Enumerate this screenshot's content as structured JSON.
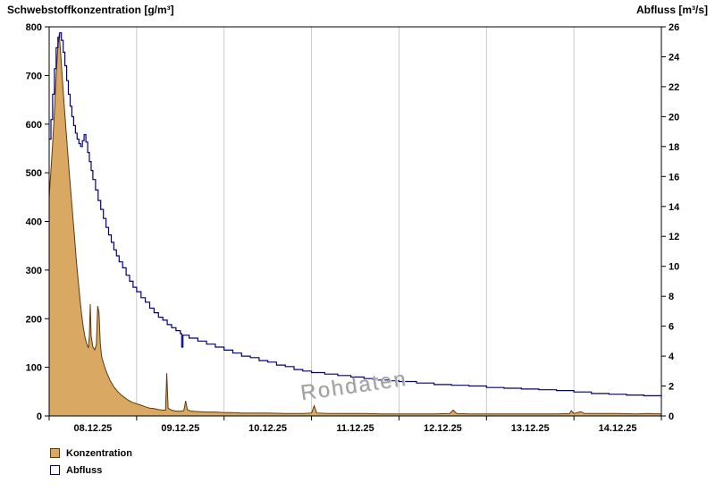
{
  "watermark": {
    "text": "Rohdaten"
  },
  "legend": {
    "items": [
      {
        "label": "Konzentration"
      },
      {
        "label": "Abfluss"
      }
    ]
  },
  "colors": {
    "background": "#ffffff",
    "grid": "#c9c9c9",
    "axis": "#000000",
    "concentration_fill": "#d9a963",
    "concentration_stroke": "#5f3a10",
    "discharge_line": "#000080",
    "watermark": "#a0a0a0"
  },
  "chart_data": {
    "type": "line",
    "title": "",
    "left_axis": {
      "title": "Schwebstoffkonzentration [g/m³]",
      "min": 0,
      "max": 800,
      "tick_step": 100,
      "ticks": [
        0,
        100,
        200,
        300,
        400,
        500,
        600,
        700,
        800
      ]
    },
    "right_axis": {
      "title": "Abfluss [m³/s]",
      "min": 0,
      "max": 26,
      "tick_step": 2,
      "ticks": [
        0,
        2,
        4,
        6,
        8,
        10,
        12,
        14,
        16,
        18,
        20,
        22,
        24,
        26
      ]
    },
    "x_axis": {
      "domain": [
        0,
        7
      ],
      "unit": "days",
      "labels": [
        "08.12.25",
        "09.12.25",
        "10.12.25",
        "11.12.25",
        "12.12.25",
        "13.12.25",
        "14.12.25"
      ]
    },
    "gridlines": {
      "vertical_days": [
        1,
        2,
        3,
        4,
        5,
        6
      ],
      "horizontal": false
    },
    "legend_position": "bottom-left",
    "series": [
      {
        "name": "Konzentration",
        "axis": "left",
        "style": "area",
        "fill": "#d9a963",
        "stroke": "#5f3a10",
        "points": [
          [
            0,
            450
          ],
          [
            0.02,
            505
          ],
          [
            0.04,
            560
          ],
          [
            0.06,
            625
          ],
          [
            0.08,
            700
          ],
          [
            0.1,
            760
          ],
          [
            0.115,
            785
          ],
          [
            0.13,
            750
          ],
          [
            0.15,
            695
          ],
          [
            0.17,
            645
          ],
          [
            0.19,
            595
          ],
          [
            0.21,
            548
          ],
          [
            0.23,
            500
          ],
          [
            0.25,
            455
          ],
          [
            0.27,
            412
          ],
          [
            0.29,
            368
          ],
          [
            0.31,
            322
          ],
          [
            0.33,
            282
          ],
          [
            0.35,
            244
          ],
          [
            0.37,
            210
          ],
          [
            0.39,
            182
          ],
          [
            0.41,
            162
          ],
          [
            0.43,
            148
          ],
          [
            0.45,
            140
          ],
          [
            0.46,
            166
          ],
          [
            0.47,
            230
          ],
          [
            0.48,
            164
          ],
          [
            0.5,
            142
          ],
          [
            0.52,
            136
          ],
          [
            0.54,
            146
          ],
          [
            0.555,
            226
          ],
          [
            0.57,
            212
          ],
          [
            0.585,
            150
          ],
          [
            0.6,
            122
          ],
          [
            0.63,
            103
          ],
          [
            0.66,
            88
          ],
          [
            0.7,
            72
          ],
          [
            0.74,
            60
          ],
          [
            0.78,
            51
          ],
          [
            0.82,
            44
          ],
          [
            0.86,
            38
          ],
          [
            0.9,
            33
          ],
          [
            0.95,
            28
          ],
          [
            1,
            25
          ],
          [
            1.05,
            22
          ],
          [
            1.1,
            19
          ],
          [
            1.15,
            16
          ],
          [
            1.2,
            15
          ],
          [
            1.25,
            13
          ],
          [
            1.3,
            12
          ],
          [
            1.33,
            12
          ],
          [
            1.345,
            88
          ],
          [
            1.36,
            16
          ],
          [
            1.4,
            12
          ],
          [
            1.45,
            10
          ],
          [
            1.5,
            10
          ],
          [
            1.54,
            11
          ],
          [
            1.56,
            31
          ],
          [
            1.58,
            13
          ],
          [
            1.62,
            10
          ],
          [
            1.7,
            9
          ],
          [
            1.8,
            8
          ],
          [
            1.9,
            8
          ],
          [
            2,
            7
          ],
          [
            2.1,
            7
          ],
          [
            2.2,
            6
          ],
          [
            2.35,
            6
          ],
          [
            2.5,
            6
          ],
          [
            2.7,
            5
          ],
          [
            2.9,
            5
          ],
          [
            3,
            6
          ],
          [
            3.03,
            21
          ],
          [
            3.06,
            6
          ],
          [
            3.2,
            5
          ],
          [
            3.4,
            5
          ],
          [
            3.6,
            5
          ],
          [
            3.8,
            4
          ],
          [
            4,
            4
          ],
          [
            4.2,
            4
          ],
          [
            4.4,
            4
          ],
          [
            4.58,
            5
          ],
          [
            4.62,
            12
          ],
          [
            4.66,
            5
          ],
          [
            4.8,
            4
          ],
          [
            5,
            4
          ],
          [
            5.2,
            4
          ],
          [
            5.4,
            4
          ],
          [
            5.6,
            4
          ],
          [
            5.8,
            4
          ],
          [
            5.95,
            5
          ],
          [
            5.97,
            11
          ],
          [
            6,
            5
          ],
          [
            6.08,
            9
          ],
          [
            6.12,
            5
          ],
          [
            6.3,
            5
          ],
          [
            6.5,
            5
          ],
          [
            6.7,
            4
          ],
          [
            6.85,
            5
          ],
          [
            7,
            4
          ]
        ]
      },
      {
        "name": "Abfluss",
        "axis": "right",
        "style": "step-line",
        "stroke": "#000080",
        "points": [
          [
            0,
            18.5
          ],
          [
            0.02,
            19.8
          ],
          [
            0.04,
            21.5
          ],
          [
            0.06,
            23.2
          ],
          [
            0.08,
            24.6
          ],
          [
            0.1,
            25.3
          ],
          [
            0.12,
            25.6
          ],
          [
            0.14,
            25.1
          ],
          [
            0.16,
            24.3
          ],
          [
            0.18,
            23.4
          ],
          [
            0.2,
            22.4
          ],
          [
            0.22,
            21.5
          ],
          [
            0.24,
            20.7
          ],
          [
            0.26,
            20
          ],
          [
            0.28,
            19.4
          ],
          [
            0.3,
            18.9
          ],
          [
            0.32,
            18.5
          ],
          [
            0.34,
            18.2
          ],
          [
            0.36,
            18
          ],
          [
            0.38,
            18.4
          ],
          [
            0.4,
            18.8
          ],
          [
            0.42,
            18.3
          ],
          [
            0.44,
            17.6
          ],
          [
            0.46,
            17
          ],
          [
            0.48,
            16.4
          ],
          [
            0.5,
            15.8
          ],
          [
            0.53,
            15.1
          ],
          [
            0.56,
            14.4
          ],
          [
            0.59,
            13.8
          ],
          [
            0.62,
            13.2
          ],
          [
            0.65,
            12.6
          ],
          [
            0.68,
            12.1
          ],
          [
            0.71,
            11.6
          ],
          [
            0.74,
            11.1
          ],
          [
            0.77,
            10.7
          ],
          [
            0.8,
            10.3
          ],
          [
            0.84,
            9.9
          ],
          [
            0.88,
            9.4
          ],
          [
            0.92,
            9
          ],
          [
            0.96,
            8.6
          ],
          [
            1,
            8.3
          ],
          [
            1.05,
            7.9
          ],
          [
            1.1,
            7.6
          ],
          [
            1.15,
            7.2
          ],
          [
            1.2,
            6.9
          ],
          [
            1.25,
            6.6
          ],
          [
            1.3,
            6.4
          ],
          [
            1.35,
            6.1
          ],
          [
            1.4,
            5.9
          ],
          [
            1.45,
            5.7
          ],
          [
            1.5,
            5.5
          ],
          [
            1.515,
            4.6
          ],
          [
            1.53,
            5.4
          ],
          [
            1.6,
            5.2
          ],
          [
            1.7,
            5
          ],
          [
            1.8,
            4.8
          ],
          [
            1.9,
            4.6
          ],
          [
            2,
            4.4
          ],
          [
            2.1,
            4.2
          ],
          [
            2.2,
            4
          ],
          [
            2.3,
            3.9
          ],
          [
            2.4,
            3.7
          ],
          [
            2.5,
            3.6
          ],
          [
            2.6,
            3.4
          ],
          [
            2.7,
            3.3
          ],
          [
            2.8,
            3.1
          ],
          [
            2.9,
            3
          ],
          [
            3,
            2.9
          ],
          [
            3.15,
            2.8
          ],
          [
            3.3,
            2.7
          ],
          [
            3.45,
            2.6
          ],
          [
            3.6,
            2.5
          ],
          [
            3.75,
            2.4
          ],
          [
            3.9,
            2.35
          ],
          [
            4,
            2.3
          ],
          [
            4.2,
            2.2
          ],
          [
            4.4,
            2.1
          ],
          [
            4.6,
            2.05
          ],
          [
            4.8,
            2
          ],
          [
            5,
            1.9
          ],
          [
            5.2,
            1.85
          ],
          [
            5.4,
            1.8
          ],
          [
            5.6,
            1.75
          ],
          [
            5.8,
            1.7
          ],
          [
            6,
            1.6
          ],
          [
            6.2,
            1.5
          ],
          [
            6.4,
            1.45
          ],
          [
            6.6,
            1.4
          ],
          [
            6.8,
            1.35
          ],
          [
            7,
            1.3
          ]
        ]
      }
    ]
  }
}
